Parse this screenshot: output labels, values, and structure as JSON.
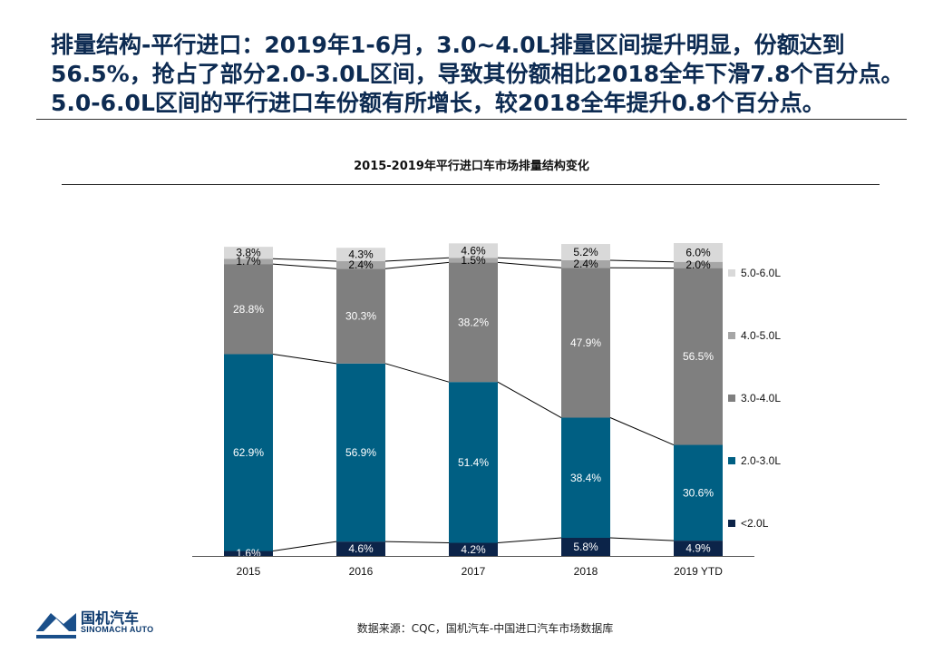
{
  "headline": "排量结构-平行进口：2019年1-6月，3.0~4.0L排量区间提升明显，份额达到56.5%，抢占了部分2.0-3.0L区间，导致其份额相比2018全年下滑7.8个百分点。5.0-6.0L区间的平行进口车份额有所增长，较2018全年提升0.8个百分点。",
  "source": "数据来源：CQC，国机汽车-中国进口汽车市场数据库",
  "logo": {
    "name": "国机汽车",
    "sub": "SINOMACH AUTO"
  },
  "chart_data": {
    "type": "bar",
    "stacked": true,
    "percent": true,
    "title": "2015-2019年平行进口车市场排量结构变化",
    "categories": [
      "2015",
      "2016",
      "2017",
      "2018",
      "2019 YTD"
    ],
    "series": [
      {
        "name": "<2.0L",
        "color": "#0c2449",
        "values": [
          1.6,
          4.6,
          4.2,
          5.8,
          4.9
        ],
        "labels": [
          "1.6%",
          "4.6%",
          "4.2%",
          "5.8%",
          "4.9%"
        ]
      },
      {
        "name": "2.0-3.0L",
        "color": "#005f83",
        "values": [
          62.9,
          56.9,
          51.4,
          38.4,
          30.6
        ],
        "labels": [
          "62.9%",
          "56.9%",
          "51.4%",
          "38.4%",
          "30.6%"
        ]
      },
      {
        "name": "3.0-4.0L",
        "color": "#7f7f7f",
        "values": [
          28.8,
          30.3,
          38.2,
          47.9,
          56.5
        ],
        "labels": [
          "28.8%",
          "30.3%",
          "38.2%",
          "47.9%",
          "56.5%"
        ]
      },
      {
        "name": "4.0-5.0L",
        "color": "#a6a6a6",
        "values": [
          1.7,
          2.4,
          1.5,
          2.4,
          2.0
        ],
        "labels": [
          "1.7%",
          "2.4%",
          "1.5%",
          "2.4%",
          "2.0%"
        ]
      },
      {
        "name": "5.0-6.0L",
        "color": "#d9d9d9",
        "values": [
          3.8,
          4.3,
          4.6,
          5.2,
          6.0
        ],
        "labels": [
          "3.8%",
          "4.3%",
          "4.6%",
          "5.2%",
          "6.0%"
        ]
      }
    ],
    "ylim": [
      0,
      100
    ],
    "legend": "right",
    "grid": false
  }
}
